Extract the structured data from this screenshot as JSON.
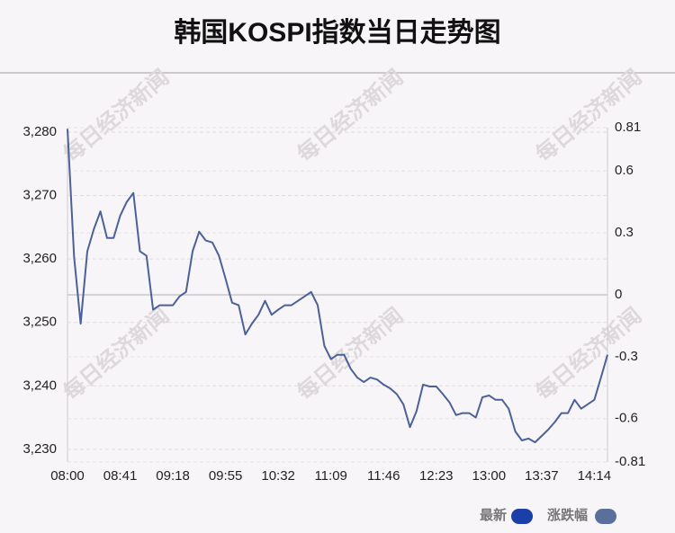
{
  "chart_data": {
    "type": "line",
    "title": "韩国KOSPI指数当日走势图",
    "watermark": "每日经济新闻",
    "categories": [
      "08:00",
      null,
      null,
      null,
      null,
      null,
      null,
      null,
      "08:41",
      null,
      null,
      null,
      null,
      null,
      null,
      null,
      "09:18",
      null,
      null,
      null,
      null,
      null,
      null,
      null,
      "09:55",
      null,
      null,
      null,
      null,
      null,
      null,
      null,
      "10:32",
      null,
      null,
      null,
      null,
      null,
      null,
      null,
      "11:09",
      null,
      null,
      null,
      null,
      null,
      null,
      null,
      "11:46",
      null,
      null,
      null,
      null,
      null,
      null,
      null,
      "12:23",
      null,
      null,
      null,
      null,
      null,
      null,
      null,
      "13:00",
      null,
      null,
      null,
      null,
      null,
      null,
      null,
      "13:37",
      null,
      null,
      null,
      null,
      null,
      null,
      null,
      "14:14",
      null,
      null
    ],
    "series": [
      {
        "name": "最新",
        "color": "#4a6199",
        "values": [
          3280.5,
          3260.4,
          3249.8,
          3261.2,
          3264.7,
          3267.5,
          3263.3,
          3263.3,
          3266.8,
          3269.0,
          3270.4,
          3261.2,
          3260.5,
          3252.0,
          3252.7,
          3252.7,
          3252.7,
          3254.1,
          3254.8,
          3261.2,
          3264.3,
          3262.9,
          3262.6,
          3260.5,
          3256.9,
          3253.1,
          3252.7,
          3248.1,
          3249.8,
          3251.2,
          3253.4,
          3251.2,
          3252.0,
          3252.7,
          3252.7,
          3253.4,
          3254.1,
          3254.8,
          3252.7,
          3246.3,
          3244.2,
          3244.9,
          3244.9,
          3242.7,
          3241.3,
          3240.6,
          3241.3,
          3241.0,
          3240.2,
          3239.6,
          3238.7,
          3237.1,
          3233.5,
          3236.0,
          3240.2,
          3239.9,
          3239.9,
          3238.7,
          3237.4,
          3235.4,
          3235.7,
          3235.7,
          3235.0,
          3238.2,
          3238.5,
          3237.8,
          3237.8,
          3236.4,
          3232.8,
          3231.4,
          3231.7,
          3231.1,
          3232.1,
          3233.1,
          3234.3,
          3235.7,
          3235.7,
          3237.8,
          3236.4,
          3237.1,
          3237.8,
          3241.3,
          3244.9
        ]
      }
    ],
    "legend": [
      {
        "name": "最新",
        "color": "#1a3fa8"
      },
      {
        "name": "涨跌幅",
        "color": "#5b6f9d"
      }
    ],
    "ylim": [
      3228.0,
      3280.7
    ],
    "yticks": [
      {
        "value": 3230,
        "label": "3,230"
      },
      {
        "value": 3240,
        "label": "3,240"
      },
      {
        "value": 3250,
        "label": "3,250"
      },
      {
        "value": 3260,
        "label": "3,260"
      },
      {
        "value": 3270,
        "label": "3,270"
      },
      {
        "value": 3280,
        "label": "3,280"
      }
    ],
    "y2lim": [
      -0.81,
      0.81
    ],
    "y2ticks": [
      -0.81,
      -0.6,
      -0.3,
      0,
      0.3,
      0.6,
      0.81
    ],
    "grid": true
  }
}
